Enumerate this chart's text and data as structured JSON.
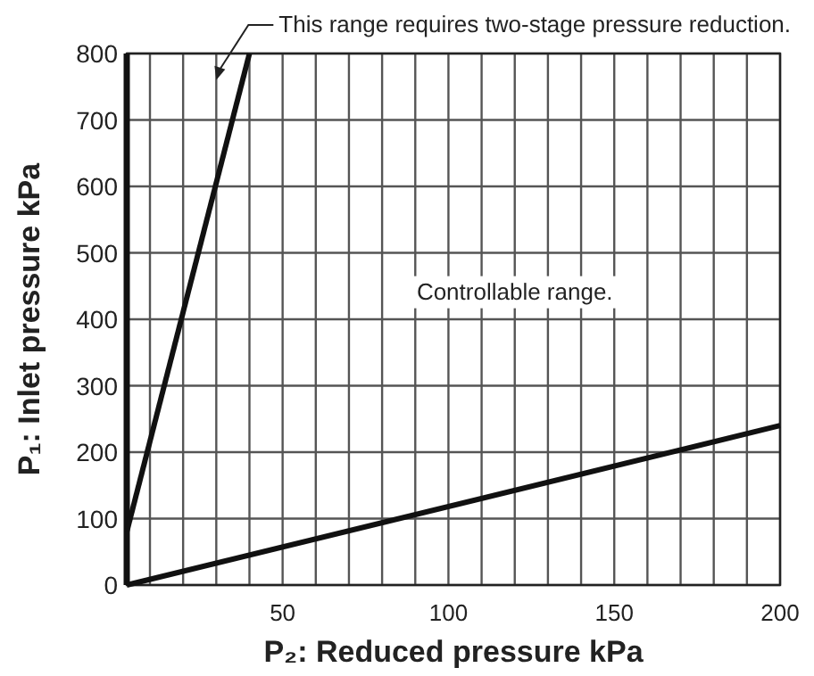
{
  "chart_data": {
    "type": "line",
    "xlabel": "P₂: Reduced pressure kPa",
    "ylabel": "P₁: Inlet pressure kPa",
    "xlim": [
      3,
      200
    ],
    "xticks": [
      {
        "value": 10,
        "label": null
      },
      {
        "value": 20,
        "label": null
      },
      {
        "value": 30,
        "label": null
      },
      {
        "value": 40,
        "label": null
      },
      50,
      {
        "value": 60,
        "label": null
      },
      {
        "value": 70,
        "label": null
      },
      {
        "value": 80,
        "label": null
      },
      {
        "value": 90,
        "label": null
      },
      100,
      {
        "value": 110,
        "label": null
      },
      {
        "value": 120,
        "label": null
      },
      {
        "value": 130,
        "label": null
      },
      {
        "value": 140,
        "label": null
      },
      150,
      {
        "value": 160,
        "label": null
      },
      {
        "value": 170,
        "label": null
      },
      {
        "value": 180,
        "label": null
      },
      {
        "value": 190,
        "label": null
      },
      200
    ],
    "ylim": [
      0,
      800
    ],
    "yticks": [
      0,
      100,
      200,
      300,
      400,
      500,
      600,
      700,
      800
    ],
    "grid": true,
    "marker": "none",
    "line_style": "solid",
    "series": [
      {
        "color": "#111111",
        "x": [
          3,
          40
        ],
        "values": [
          80,
          800
        ]
      },
      {
        "color": "#111111",
        "x": [
          3,
          200
        ],
        "values": [
          0,
          240
        ]
      }
    ],
    "annotations": [
      "This range requires two-stage pressure reduction.",
      "Controllable range."
    ]
  }
}
